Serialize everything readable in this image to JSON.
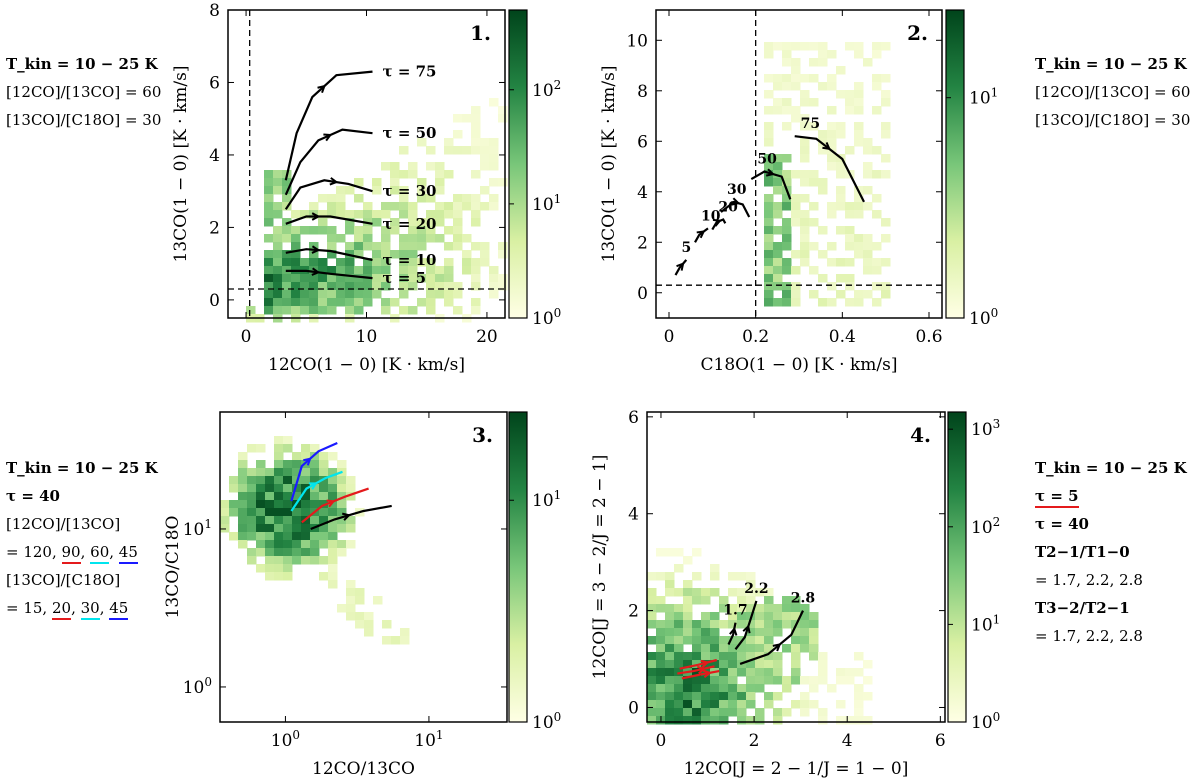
{
  "colors": {
    "cmap_low": "#ffffe5",
    "cmap_mid": "#78c679",
    "cmap_high": "#00441b",
    "red": "#e41a1c",
    "cyan": "#00e5ee",
    "blue": "#1a1aff",
    "black": "#000000"
  },
  "side_notes": {
    "top_left": [
      "T_kin = 10 − 25 K",
      "[12CO]/[13CO] = 60",
      "[13CO]/[C18O] = 30"
    ],
    "top_right": [
      "T_kin = 10 − 25 K",
      "[12CO]/[13CO] = 60",
      "[13CO]/[C18O] = 30"
    ],
    "bottom_left": {
      "tkin": "T_kin = 10 − 25 K",
      "tau": "τ = 40",
      "ratio1_label": "[12CO]/[13CO]",
      "ratio1_prefix": "= 120, ",
      "ratio1_v2": "90",
      "ratio1_v3": "60",
      "ratio1_v4": "45",
      "ratio2_label": "[13CO]/[C18O]",
      "ratio2_prefix": "= 15, ",
      "ratio2_v2": "20",
      "ratio2_v3": "30",
      "ratio2_v4": "45"
    },
    "bottom_right": {
      "tkin": "T_kin = 10 − 25 K",
      "tau_a": "τ = 5",
      "tau_b": "τ = 40",
      "ratio1_label": "T2−1/T1−0",
      "ratio1_values": "= 1.7,  2.2,  2.8",
      "ratio2_label": "T3−2/T2−1",
      "ratio2_values": "= 1.7,  2.2,  2.8"
    }
  },
  "chart_data": [
    {
      "type": "heatmap",
      "panel_label": "1.",
      "xlabel": "12CO(1 − 0) [K · km/s]",
      "ylabel": "13CO(1 − 0) [K · km/s]",
      "xlim": [
        -1.5,
        21.5
      ],
      "ylim": [
        -0.5,
        8
      ],
      "xticks": [
        0,
        10,
        20
      ],
      "yticks": [
        0,
        2,
        4,
        6,
        8
      ],
      "colorbar": {
        "scale": "log",
        "range": [
          1,
          500
        ],
        "ticks": [
          "10^0",
          "10^1",
          "10^2"
        ]
      },
      "reference_lines": {
        "vertical_x": 0.3,
        "horizontal_y": 0.3
      },
      "tracks": [
        {
          "label": "τ = 75",
          "points": [
            [
              3.3,
              3.3
            ],
            [
              4.2,
              4.6
            ],
            [
              5.5,
              5.6
            ],
            [
              7.5,
              6.2
            ],
            [
              10.5,
              6.3
            ]
          ]
        },
        {
          "label": "τ = 50",
          "points": [
            [
              3.3,
              2.9
            ],
            [
              4.5,
              3.8
            ],
            [
              6,
              4.4
            ],
            [
              8,
              4.7
            ],
            [
              10.5,
              4.6
            ]
          ]
        },
        {
          "label": "τ = 30",
          "points": [
            [
              3.3,
              2.5
            ],
            [
              4.5,
              3.1
            ],
            [
              6.5,
              3.3
            ],
            [
              8.5,
              3.2
            ],
            [
              10.5,
              3.0
            ]
          ]
        },
        {
          "label": "τ = 20",
          "points": [
            [
              3.3,
              2.1
            ],
            [
              5,
              2.3
            ],
            [
              7,
              2.3
            ],
            [
              10.5,
              2.1
            ]
          ]
        },
        {
          "label": "τ = 10",
          "points": [
            [
              3.3,
              1.3
            ],
            [
              5,
              1.4
            ],
            [
              7,
              1.35
            ],
            [
              10.5,
              1.1
            ]
          ]
        },
        {
          "label": "τ = 5",
          "points": [
            [
              3.3,
              0.8
            ],
            [
              5,
              0.8
            ],
            [
              7,
              0.72
            ],
            [
              10.5,
              0.6
            ]
          ]
        }
      ]
    },
    {
      "type": "heatmap",
      "panel_label": "2.",
      "xlabel": "C18O(1 − 0) [K · km/s]",
      "ylabel": "13CO(1 − 0) [K · km/s]",
      "xlim": [
        -0.03,
        0.63
      ],
      "ylim": [
        -1,
        11.2
      ],
      "xticks": [
        0.0,
        0.2,
        0.4,
        0.6
      ],
      "yticks": [
        0,
        2,
        4,
        6,
        8,
        10
      ],
      "colorbar": {
        "scale": "log",
        "range": [
          1,
          25
        ],
        "ticks": [
          "10^0",
          "10^1"
        ]
      },
      "reference_lines": {
        "vertical_x": 0.2,
        "horizontal_y": 0.3
      },
      "tracks": [
        {
          "label": "5",
          "points": [
            [
              0.015,
              0.7
            ],
            [
              0.025,
              1.0
            ],
            [
              0.04,
              1.3
            ]
          ]
        },
        {
          "label": "10",
          "points": [
            [
              0.06,
              2.0
            ],
            [
              0.07,
              2.3
            ],
            [
              0.09,
              2.55
            ]
          ]
        },
        {
          "label": "20",
          "points": [
            [
              0.1,
              2.5
            ],
            [
              0.11,
              2.8
            ],
            [
              0.125,
              2.9
            ],
            [
              0.13,
              2.75
            ]
          ]
        },
        {
          "label": "30",
          "points": [
            [
              0.12,
              3.2
            ],
            [
              0.15,
              3.6
            ],
            [
              0.17,
              3.5
            ],
            [
              0.185,
              3.0
            ]
          ]
        },
        {
          "label": "50",
          "points": [
            [
              0.19,
              4.5
            ],
            [
              0.22,
              4.8
            ],
            [
              0.26,
              4.6
            ],
            [
              0.28,
              3.7
            ]
          ]
        },
        {
          "label": "75",
          "points": [
            [
              0.29,
              6.2
            ],
            [
              0.34,
              6.1
            ],
            [
              0.4,
              5.3
            ],
            [
              0.45,
              3.6
            ]
          ]
        }
      ]
    },
    {
      "type": "heatmap",
      "panel_label": "3.",
      "xlabel": "12CO/13CO",
      "ylabel": "13CO/C18O",
      "xscale": "log",
      "yscale": "log",
      "xlim": [
        0.35,
        35
      ],
      "ylim": [
        0.6,
        55
      ],
      "xticks": [
        "10^0",
        "10^1"
      ],
      "yticks": [
        "10^0",
        "10^1"
      ],
      "colorbar": {
        "scale": "log",
        "range": [
          1,
          25
        ],
        "ticks": [
          "10^0",
          "10^1"
        ]
      },
      "tracks": [
        {
          "color": "blue",
          "points": [
            [
              1.1,
              15
            ],
            [
              1.3,
              25
            ],
            [
              1.7,
              31
            ],
            [
              2.3,
              35
            ]
          ]
        },
        {
          "color": "cyan",
          "points": [
            [
              1.1,
              13
            ],
            [
              1.4,
              18
            ],
            [
              1.9,
              21
            ],
            [
              2.5,
              23
            ]
          ]
        },
        {
          "color": "red",
          "points": [
            [
              1.3,
              11
            ],
            [
              1.8,
              14
            ],
            [
              2.6,
              16
            ],
            [
              3.8,
              18
            ]
          ]
        },
        {
          "color": "black",
          "points": [
            [
              1.5,
              10
            ],
            [
              2.2,
              11.5
            ],
            [
              3.5,
              13
            ],
            [
              5.5,
              14
            ]
          ]
        }
      ]
    },
    {
      "type": "heatmap",
      "panel_label": "4.",
      "xlabel": "12CO[J = 2 − 1/J = 1 − 0]",
      "ylabel": "12CO[J = 3 − 2/J = 2 − 1]",
      "xlim": [
        -0.3,
        6.1
      ],
      "ylim": [
        -0.3,
        6.1
      ],
      "xticks": [
        0,
        2,
        4,
        6
      ],
      "yticks": [
        0,
        2,
        4,
        6
      ],
      "colorbar": {
        "scale": "log",
        "range": [
          1,
          1500
        ],
        "ticks": [
          "10^0",
          "10^1",
          "10^2",
          "10^3"
        ]
      },
      "tracks": [
        {
          "label": "1.7",
          "color": "black",
          "points": [
            [
              1.45,
              1.3
            ],
            [
              1.55,
              1.5
            ],
            [
              1.6,
              1.75
            ]
          ]
        },
        {
          "label": "2.2",
          "color": "black",
          "points": [
            [
              1.6,
              1.2
            ],
            [
              1.8,
              1.45
            ],
            [
              1.95,
              1.9
            ],
            [
              2.05,
              2.2
            ]
          ]
        },
        {
          "label": "2.8",
          "color": "black",
          "points": [
            [
              1.7,
              0.9
            ],
            [
              2.3,
              1.1
            ],
            [
              2.8,
              1.5
            ],
            [
              3.05,
              2.0
            ]
          ]
        },
        {
          "label": "",
          "color": "red",
          "points": [
            [
              0.35,
              0.7
            ],
            [
              0.7,
              0.75
            ],
            [
              1.15,
              0.85
            ]
          ]
        },
        {
          "label": "",
          "color": "red",
          "points": [
            [
              0.4,
              0.8
            ],
            [
              0.8,
              0.88
            ],
            [
              1.2,
              0.98
            ]
          ]
        },
        {
          "label": "",
          "color": "red",
          "points": [
            [
              0.45,
              0.6
            ],
            [
              0.85,
              0.68
            ],
            [
              1.25,
              0.75
            ]
          ]
        }
      ]
    }
  ]
}
